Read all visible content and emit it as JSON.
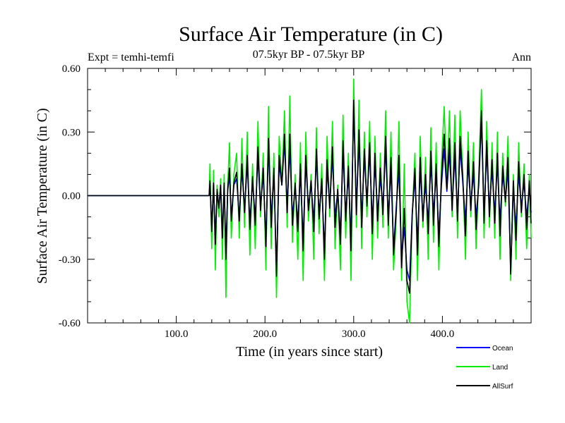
{
  "chart_data": {
    "type": "line",
    "title": "Surface Air Temperature (in C)",
    "subtitle": "07.5kyr BP - 07.5kyr BP",
    "left_annotation": "Expt = temhi-temfi",
    "right_annotation": "Ann",
    "xlabel": "Time (in years since start)",
    "ylabel": "Surface Air Temperature (in C)",
    "xlim": [
      0,
      500
    ],
    "ylim": [
      -0.6,
      0.6
    ],
    "x_ticks": [
      {
        "value": 100,
        "label": "100.0"
      },
      {
        "value": 200,
        "label": "200.0"
      },
      {
        "value": 300,
        "label": "300.0"
      },
      {
        "value": 400,
        "label": "400.0"
      }
    ],
    "y_ticks": [
      {
        "value": -0.6,
        "label": "-0.60"
      },
      {
        "value": -0.3,
        "label": "-0.30"
      },
      {
        "value": 0.0,
        "label": "0.00"
      },
      {
        "value": 0.3,
        "label": "0.30"
      },
      {
        "value": 0.6,
        "label": "0.60"
      }
    ],
    "zero_line": 0.0,
    "series": [
      {
        "name": "Land",
        "color": "#00ee00",
        "x": [
          0,
          137,
          138,
          140,
          142,
          144,
          146,
          148,
          150,
          152,
          154,
          156,
          158,
          160,
          162,
          165,
          168,
          171,
          174,
          177,
          180,
          183,
          186,
          189,
          192,
          195,
          198,
          201,
          204,
          207,
          210,
          213,
          216,
          219,
          222,
          225,
          228,
          231,
          234,
          237,
          240,
          243,
          246,
          249,
          252,
          255,
          258,
          261,
          264,
          267,
          270,
          273,
          276,
          279,
          282,
          285,
          288,
          291,
          294,
          297,
          300,
          303,
          306,
          309,
          312,
          315,
          318,
          321,
          324,
          327,
          330,
          333,
          336,
          339,
          342,
          345,
          348,
          351,
          354,
          357,
          360,
          363,
          366,
          369,
          372,
          375,
          378,
          381,
          384,
          387,
          390,
          393,
          396,
          399,
          402,
          405,
          408,
          411,
          414,
          417,
          420,
          423,
          426,
          429,
          432,
          435,
          438,
          441,
          444,
          447,
          450,
          453,
          456,
          459,
          462,
          465,
          468,
          471,
          474,
          477,
          480,
          483,
          486,
          489,
          492,
          495,
          498,
          500
        ],
        "values": [
          0,
          0,
          0.15,
          -0.25,
          0.12,
          -0.35,
          0.05,
          -0.1,
          0.08,
          -0.3,
          0.1,
          -0.48,
          0.05,
          0.25,
          -0.2,
          0.1,
          0.2,
          -0.2,
          0.27,
          -0.15,
          0.3,
          -0.28,
          0.15,
          -0.25,
          0.35,
          -0.1,
          0.2,
          -0.35,
          0.42,
          -0.25,
          0.2,
          -0.48,
          0.28,
          0.05,
          0.4,
          -0.15,
          0.47,
          -0.22,
          0.1,
          -0.3,
          0.25,
          -0.4,
          0.3,
          -0.12,
          0.1,
          -0.3,
          0.32,
          -0.18,
          0.15,
          -0.4,
          0.28,
          -0.1,
          0.35,
          -0.25,
          0.05,
          -0.35,
          0.38,
          -0.2,
          0.2,
          -0.4,
          0.55,
          -0.15,
          0.45,
          -0.25,
          0.3,
          -0.1,
          0.35,
          -0.3,
          0.28,
          -0.2,
          0.2,
          -0.15,
          0.4,
          -0.2,
          0.3,
          -0.35,
          -0.1,
          0.35,
          -0.4,
          0.15,
          -0.5,
          -0.6,
          -0.1,
          0.2,
          -0.4,
          0.28,
          -0.15,
          0.18,
          -0.3,
          0.32,
          -0.22,
          0.25,
          -0.35,
          0.15,
          0.42,
          0.05,
          0.4,
          -0.1,
          0.38,
          -0.2,
          0.4,
          0.1,
          -0.3,
          0.3,
          -0.1,
          0.25,
          -0.25,
          0.1,
          0.5,
          -0.2,
          0.35,
          -0.15,
          0.25,
          -0.2,
          0.3,
          -0.3,
          0.2,
          -0.05,
          0.28,
          -0.4,
          0.1,
          -0.3,
          0.25,
          -0.1,
          0.15,
          -0.25,
          0.1,
          -0.2
        ]
      },
      {
        "name": "Ocean",
        "color": "#0000ff",
        "x": [
          0,
          137,
          138,
          140,
          142,
          144,
          146,
          148,
          150,
          152,
          154,
          156,
          158,
          160,
          162,
          165,
          168,
          171,
          174,
          177,
          180,
          183,
          186,
          189,
          192,
          195,
          198,
          201,
          204,
          207,
          210,
          213,
          216,
          219,
          222,
          225,
          228,
          231,
          234,
          237,
          240,
          243,
          246,
          249,
          252,
          255,
          258,
          261,
          264,
          267,
          270,
          273,
          276,
          279,
          282,
          285,
          288,
          291,
          294,
          297,
          300,
          303,
          306,
          309,
          312,
          315,
          318,
          321,
          324,
          327,
          330,
          333,
          336,
          339,
          342,
          345,
          348,
          351,
          354,
          357,
          360,
          363,
          366,
          369,
          372,
          375,
          378,
          381,
          384,
          387,
          390,
          393,
          396,
          399,
          402,
          405,
          408,
          411,
          414,
          417,
          420,
          423,
          426,
          429,
          432,
          435,
          438,
          441,
          444,
          447,
          450,
          453,
          456,
          459,
          462,
          465,
          468,
          471,
          474,
          477,
          480,
          483,
          486,
          489,
          492,
          495,
          498,
          500
        ],
        "values": [
          0,
          0,
          0.06,
          -0.15,
          0.05,
          -0.2,
          0.02,
          -0.05,
          0.04,
          -0.18,
          0.05,
          -0.25,
          0.02,
          0.1,
          -0.1,
          0.05,
          0.08,
          -0.1,
          0.12,
          -0.06,
          0.15,
          -0.12,
          0.06,
          -0.1,
          0.18,
          -0.05,
          0.1,
          -0.2,
          0.22,
          -0.1,
          0.1,
          -0.35,
          0.15,
          0.05,
          0.25,
          -0.05,
          0.22,
          -0.1,
          0.04,
          -0.12,
          0.1,
          -0.2,
          0.15,
          -0.05,
          0.05,
          -0.12,
          0.18,
          -0.08,
          0.05,
          -0.25,
          0.12,
          -0.04,
          0.18,
          -0.1,
          0.02,
          -0.18,
          0.2,
          -0.08,
          0.1,
          -0.2,
          0.42,
          -0.05,
          0.25,
          -0.1,
          0.18,
          -0.02,
          0.2,
          -0.12,
          0.15,
          -0.08,
          0.08,
          -0.05,
          0.22,
          -0.1,
          0.12,
          -0.25,
          -0.05,
          0.12,
          -0.3,
          -0.15,
          -0.35,
          -0.4,
          -0.08,
          0.08,
          -0.22,
          0.12,
          -0.1,
          0.05,
          -0.12,
          0.15,
          -0.08,
          0.1,
          -0.18,
          0.05,
          0.22,
          0.02,
          0.2,
          -0.05,
          0.18,
          -0.08,
          0.22,
          0.06,
          -0.12,
          0.15,
          -0.04,
          0.1,
          -0.1,
          0.05,
          0.35,
          -0.08,
          0.2,
          -0.06,
          0.12,
          -0.08,
          0.15,
          -0.12,
          0.1,
          -0.02,
          0.12,
          -0.35,
          0.04,
          -0.15,
          0.1,
          -0.05,
          0.06,
          -0.1,
          0.04,
          -0.08
        ]
      },
      {
        "name": "AllSurf",
        "color": "#000000",
        "x": [
          0,
          137,
          138,
          140,
          142,
          144,
          146,
          148,
          150,
          152,
          154,
          156,
          158,
          160,
          162,
          165,
          168,
          171,
          174,
          177,
          180,
          183,
          186,
          189,
          192,
          195,
          198,
          201,
          204,
          207,
          210,
          213,
          216,
          219,
          222,
          225,
          228,
          231,
          234,
          237,
          240,
          243,
          246,
          249,
          252,
          255,
          258,
          261,
          264,
          267,
          270,
          273,
          276,
          279,
          282,
          285,
          288,
          291,
          294,
          297,
          300,
          303,
          306,
          309,
          312,
          315,
          318,
          321,
          324,
          327,
          330,
          333,
          336,
          339,
          342,
          345,
          348,
          351,
          354,
          357,
          360,
          363,
          366,
          369,
          372,
          375,
          378,
          381,
          384,
          387,
          390,
          393,
          396,
          399,
          402,
          405,
          408,
          411,
          414,
          417,
          420,
          423,
          426,
          429,
          432,
          435,
          438,
          441,
          444,
          447,
          450,
          453,
          456,
          459,
          462,
          465,
          468,
          471,
          474,
          477,
          480,
          483,
          486,
          489,
          492,
          495,
          498,
          500
        ],
        "values": [
          0,
          0,
          0.07,
          -0.17,
          0.06,
          -0.23,
          0.03,
          -0.06,
          0.05,
          -0.2,
          0.06,
          -0.3,
          0.03,
          0.13,
          -0.12,
          0.06,
          0.11,
          -0.12,
          0.15,
          -0.08,
          0.19,
          -0.16,
          0.09,
          -0.14,
          0.23,
          -0.07,
          0.13,
          -0.24,
          0.27,
          -0.15,
          0.13,
          -0.38,
          0.19,
          0.05,
          0.29,
          -0.08,
          0.29,
          -0.14,
          0.06,
          -0.17,
          0.15,
          -0.26,
          0.19,
          -0.07,
          0.07,
          -0.17,
          0.22,
          -0.11,
          0.08,
          -0.3,
          0.17,
          -0.06,
          0.23,
          -0.15,
          0.03,
          -0.23,
          0.26,
          -0.12,
          0.14,
          -0.26,
          0.45,
          -0.09,
          0.31,
          -0.15,
          0.22,
          -0.05,
          0.25,
          -0.18,
          0.2,
          -0.12,
          0.13,
          -0.09,
          0.28,
          -0.14,
          0.18,
          -0.28,
          -0.07,
          0.19,
          -0.34,
          -0.06,
          -0.4,
          -0.46,
          -0.09,
          0.13,
          -0.28,
          0.18,
          -0.12,
          0.1,
          -0.18,
          0.21,
          -0.14,
          0.15,
          -0.24,
          0.09,
          0.29,
          0.03,
          0.27,
          -0.07,
          0.25,
          -0.12,
          0.28,
          0.08,
          -0.19,
          0.21,
          -0.07,
          0.16,
          -0.16,
          0.07,
          0.4,
          -0.13,
          0.26,
          -0.1,
          0.17,
          -0.13,
          0.2,
          -0.19,
          0.14,
          -0.03,
          0.18,
          -0.37,
          0.07,
          -0.21,
          0.16,
          -0.08,
          0.1,
          -0.16,
          0.07,
          -0.13
        ]
      }
    ],
    "legend": {
      "placement": "bottom-right",
      "order": [
        "Ocean",
        "Land",
        "AllSurf"
      ]
    }
  }
}
